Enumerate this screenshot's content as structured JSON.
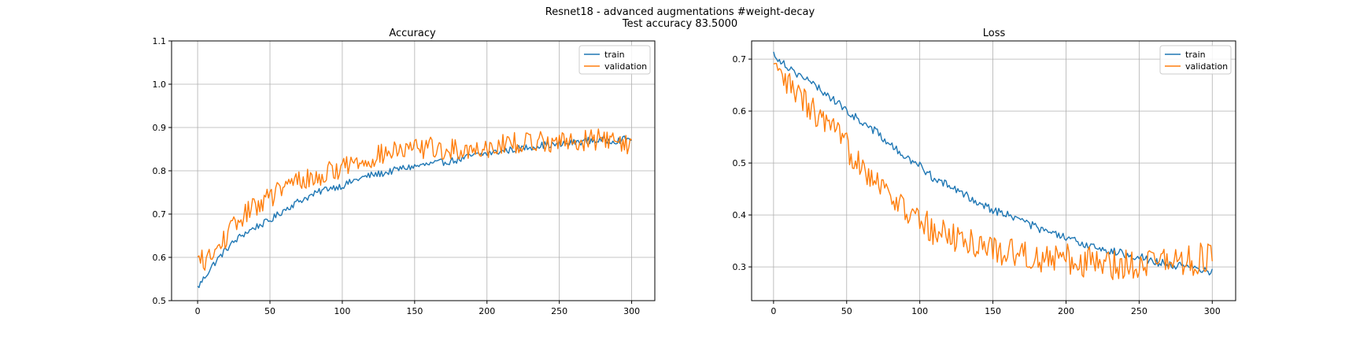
{
  "figure": {
    "title_line1": "Resnet18 - advanced augmentations #weight-decay",
    "title_line2": "Test accuracy 83.5000"
  },
  "colors": {
    "train": "#1f77b4",
    "validation": "#ff7f0e"
  },
  "chart_data": [
    {
      "type": "line",
      "title": "Accuracy",
      "xlabel": "",
      "ylabel": "",
      "xlim": [
        -18,
        316
      ],
      "ylim": [
        0.5,
        1.1
      ],
      "xticks": [
        0,
        50,
        100,
        150,
        200,
        250,
        300
      ],
      "yticks": [
        0.5,
        0.6,
        0.7,
        0.8,
        0.9,
        1.0,
        1.1
      ],
      "ytick_labels": [
        "0.5",
        "0.6",
        "0.7",
        "0.8",
        "0.9",
        "1.0",
        "1.1"
      ],
      "grid": true,
      "legend_position": "top-right",
      "series": [
        {
          "name": "train",
          "color": "#1f77b4",
          "curve": {
            "type": "exp",
            "start": 0.55,
            "end": 0.88,
            "tau": 95
          },
          "x": [
            0,
            10,
            20,
            30,
            40,
            50,
            60,
            70,
            80,
            90,
            100,
            110,
            120,
            130,
            140,
            150,
            160,
            170,
            180,
            190,
            200,
            210,
            220,
            230,
            240,
            250,
            260,
            270,
            280,
            290,
            300
          ],
          "values": [
            0.53,
            0.58,
            0.62,
            0.65,
            0.67,
            0.685,
            0.71,
            0.73,
            0.745,
            0.76,
            0.765,
            0.78,
            0.79,
            0.795,
            0.805,
            0.81,
            0.815,
            0.82,
            0.825,
            0.835,
            0.84,
            0.845,
            0.85,
            0.855,
            0.86,
            0.86,
            0.865,
            0.87,
            0.87,
            0.87,
            0.875
          ],
          "noise": 0.008
        },
        {
          "name": "validation",
          "color": "#ff7f0e",
          "curve": {
            "type": "exp",
            "start": 0.56,
            "end": 0.875,
            "tau": 70
          },
          "x": [
            0,
            10,
            20,
            30,
            40,
            50,
            60,
            70,
            80,
            90,
            100,
            110,
            120,
            130,
            140,
            150,
            160,
            170,
            180,
            190,
            200,
            210,
            220,
            230,
            240,
            250,
            260,
            270,
            280,
            290,
            300
          ],
          "values": [
            0.59,
            0.6,
            0.65,
            0.69,
            0.72,
            0.74,
            0.76,
            0.78,
            0.78,
            0.795,
            0.81,
            0.82,
            0.83,
            0.84,
            0.845,
            0.85,
            0.855,
            0.845,
            0.85,
            0.85,
            0.855,
            0.86,
            0.865,
            0.865,
            0.87,
            0.865,
            0.87,
            0.87,
            0.875,
            0.87,
            0.86
          ],
          "noise": 0.025
        }
      ]
    },
    {
      "type": "line",
      "title": "Loss",
      "xlabel": "",
      "ylabel": "",
      "xlim": [
        -15,
        316
      ],
      "ylim": [
        0.235,
        0.735
      ],
      "xticks": [
        0,
        50,
        100,
        150,
        200,
        250,
        300
      ],
      "yticks": [
        0.3,
        0.4,
        0.5,
        0.6,
        0.7
      ],
      "ytick_labels": [
        "0.3",
        "0.4",
        "0.5",
        "0.6",
        "0.7"
      ],
      "grid": true,
      "legend_position": "top-right",
      "series": [
        {
          "name": "train",
          "color": "#1f77b4",
          "x": [
            0,
            10,
            20,
            30,
            40,
            50,
            60,
            70,
            80,
            90,
            100,
            110,
            120,
            130,
            140,
            150,
            160,
            170,
            180,
            190,
            200,
            210,
            220,
            230,
            240,
            250,
            260,
            270,
            280,
            290,
            300
          ],
          "values": [
            0.71,
            0.685,
            0.665,
            0.645,
            0.625,
            0.6,
            0.58,
            0.56,
            0.535,
            0.51,
            0.495,
            0.47,
            0.455,
            0.44,
            0.425,
            0.41,
            0.4,
            0.39,
            0.375,
            0.365,
            0.355,
            0.345,
            0.34,
            0.33,
            0.325,
            0.32,
            0.31,
            0.305,
            0.3,
            0.295,
            0.29
          ],
          "noise": 0.008
        },
        {
          "name": "validation",
          "color": "#ff7f0e",
          "x": [
            0,
            10,
            20,
            30,
            40,
            50,
            60,
            70,
            80,
            90,
            100,
            110,
            120,
            130,
            140,
            150,
            160,
            170,
            180,
            190,
            200,
            210,
            220,
            230,
            240,
            250,
            260,
            270,
            280,
            290,
            300
          ],
          "values": [
            0.675,
            0.65,
            0.62,
            0.59,
            0.56,
            0.53,
            0.5,
            0.47,
            0.44,
            0.41,
            0.385,
            0.37,
            0.36,
            0.35,
            0.345,
            0.335,
            0.33,
            0.325,
            0.32,
            0.315,
            0.315,
            0.31,
            0.31,
            0.305,
            0.305,
            0.31,
            0.315,
            0.31,
            0.31,
            0.315,
            0.32
          ],
          "noise": 0.03
        }
      ]
    }
  ]
}
